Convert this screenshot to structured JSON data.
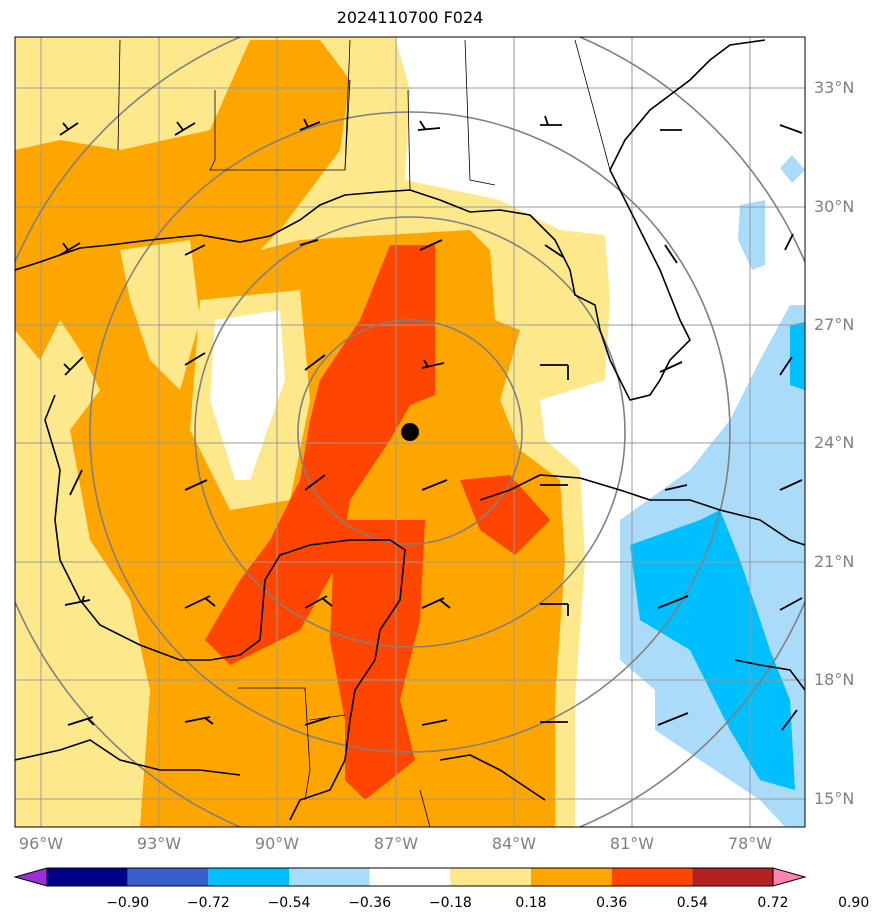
{
  "title": "2024110700 F024",
  "latitude_labels": [
    "33°N",
    "30°N",
    "27°N",
    "24°N",
    "21°N",
    "18°N",
    "15°N"
  ],
  "longitude_labels": [
    "96°W",
    "93°W",
    "90°W",
    "87°W",
    "84°W",
    "81°W",
    "78°W"
  ],
  "colorbar": {
    "tick_labels": [
      "−0.90",
      "−0.72",
      "−0.54",
      "−0.36",
      "−0.18",
      "0.18",
      "0.36",
      "0.54",
      "0.72",
      "0.90"
    ],
    "colors": [
      "#9b30d9",
      "#00008b",
      "#3a5fcd",
      "#00bfff",
      "#aadcfa",
      "#ffffff",
      "#fde98b",
      "#ffa500",
      "#ff4500",
      "#b22222",
      "#ff85b0"
    ]
  },
  "fill_colors": {
    "light_yellow": "#fde98b",
    "orange": "#ffa500",
    "red_orange": "#ff4500",
    "light_blue": "#aadcfa",
    "sky_blue": "#00bfff"
  },
  "storm_center_marker": "black-dot",
  "range_rings": "gray-concentric-circles"
}
